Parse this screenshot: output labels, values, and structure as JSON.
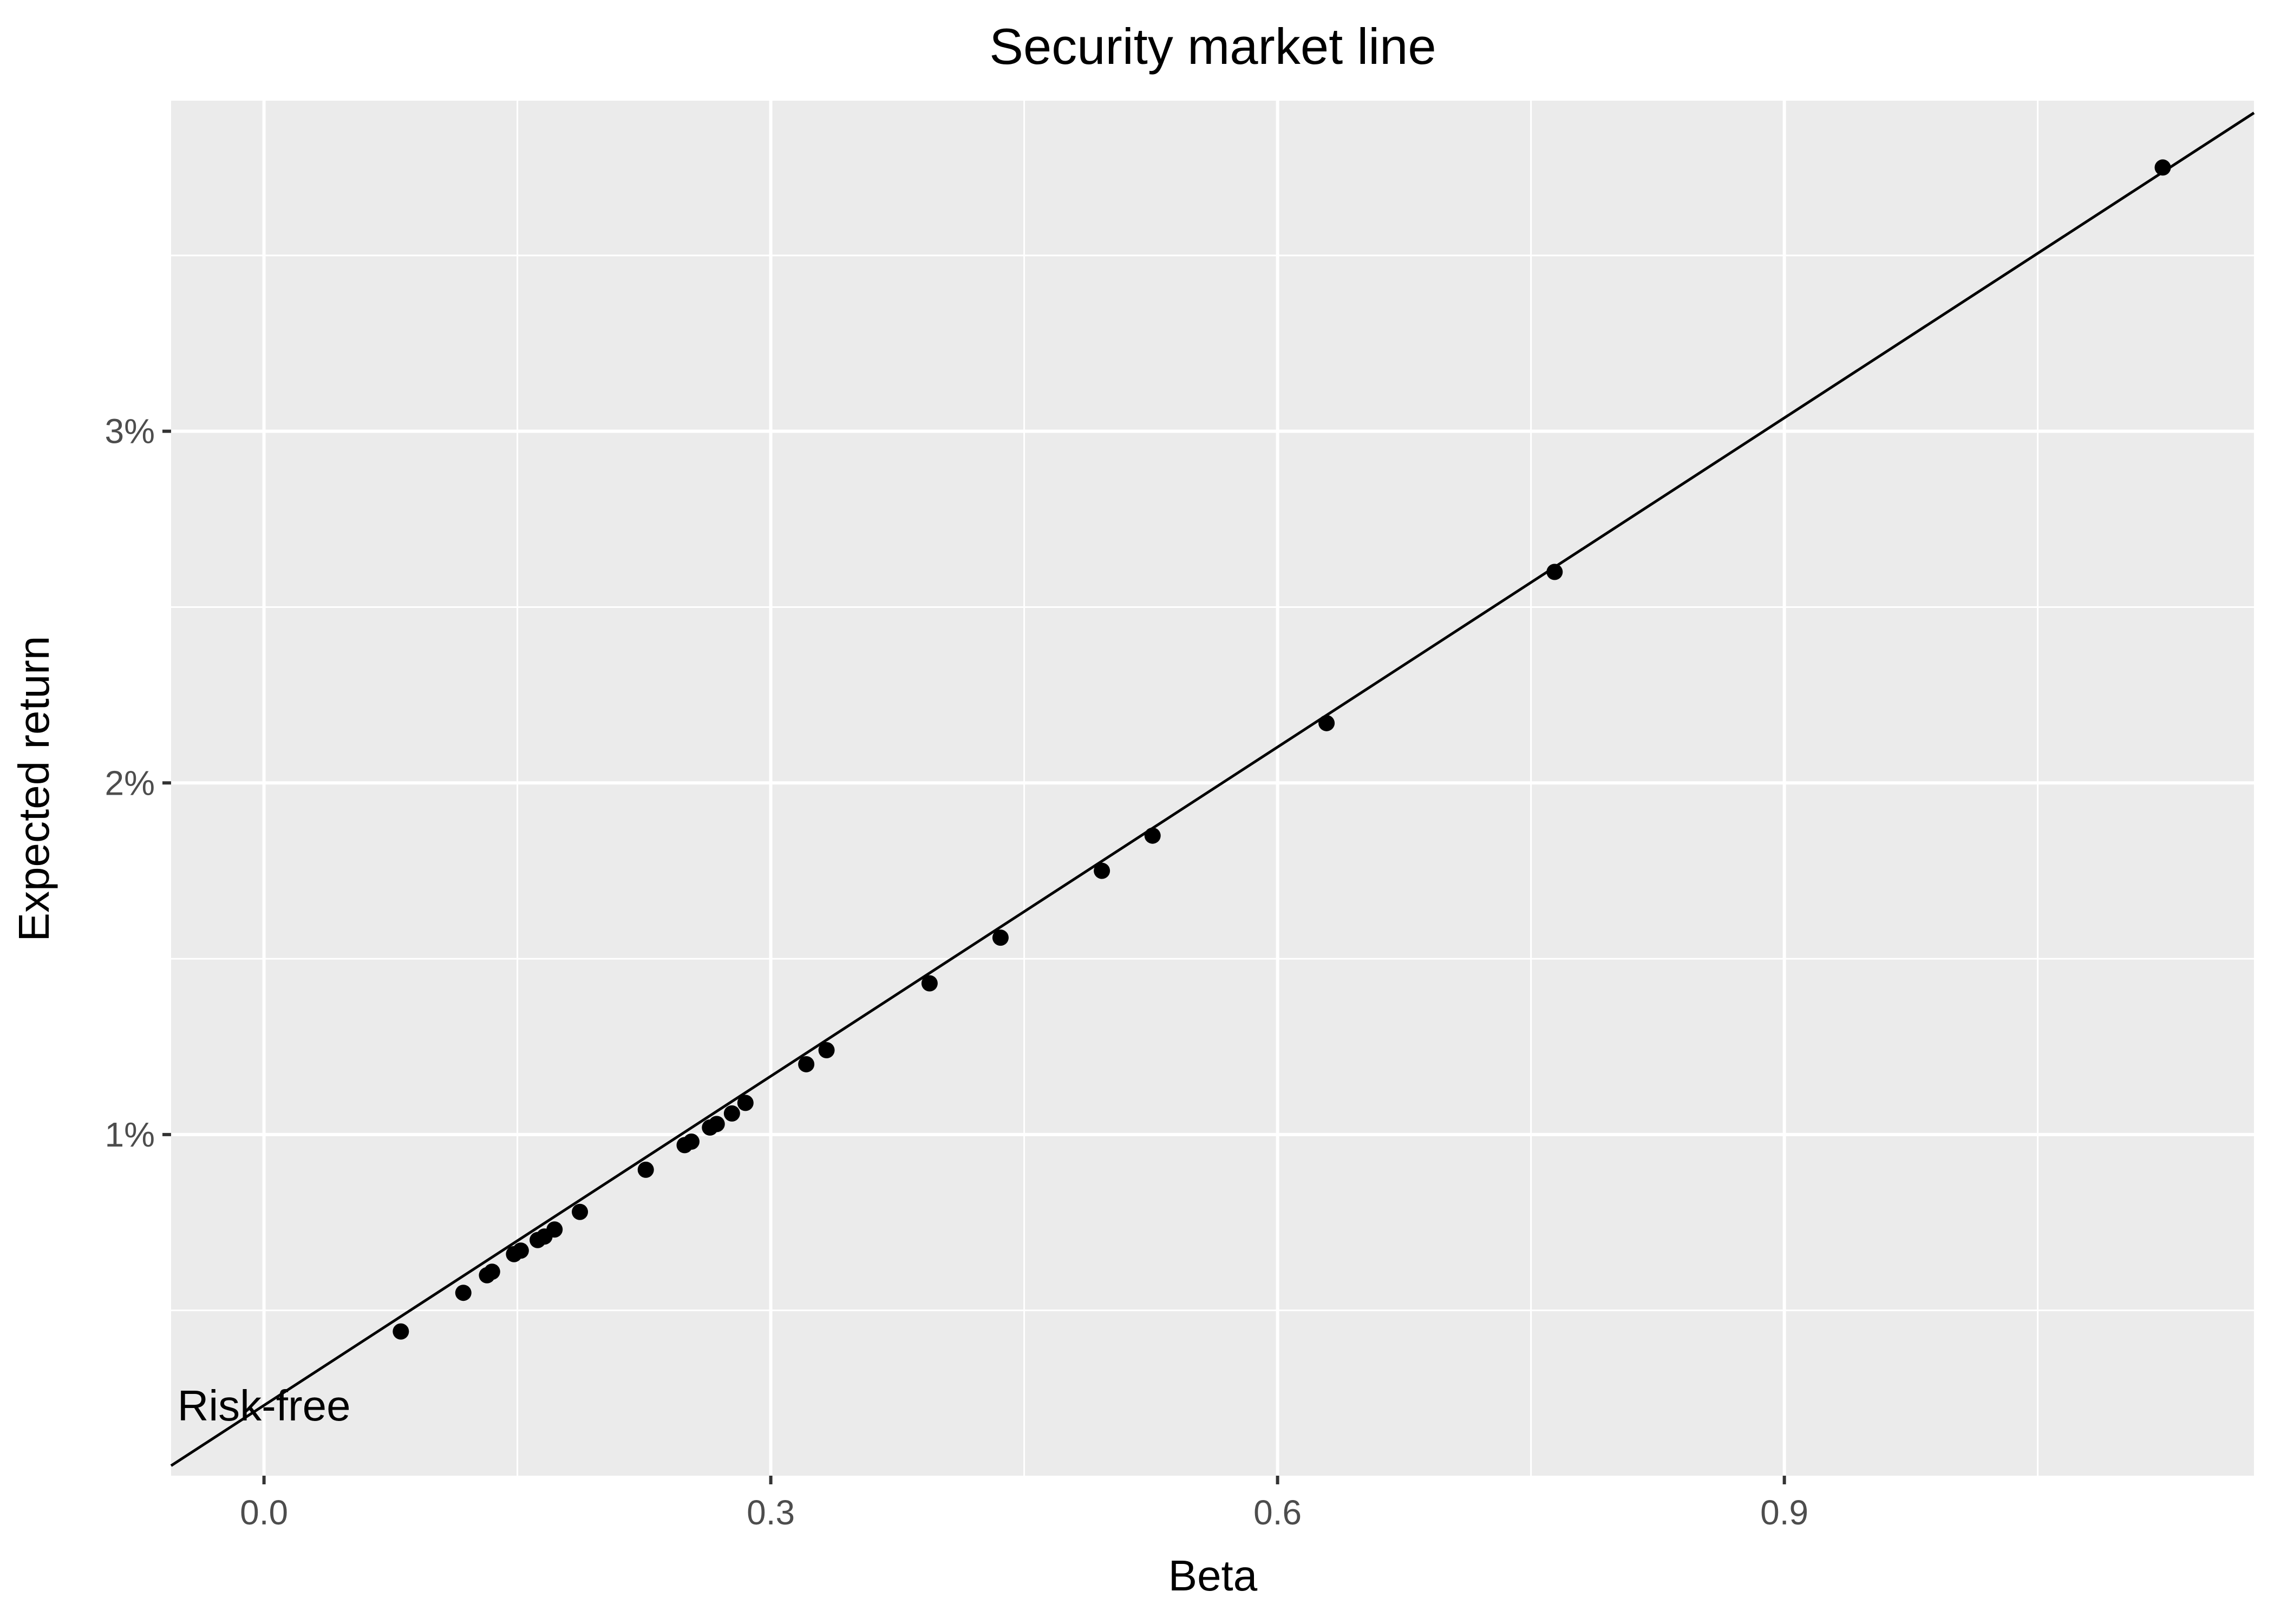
{
  "chart_data": {
    "type": "scatter",
    "title": "Security market line",
    "xlabel": "Beta",
    "ylabel": "Expected return",
    "x_ticks": [
      {
        "value": 0.0,
        "label": "0.0"
      },
      {
        "value": 0.3,
        "label": "0.3"
      },
      {
        "value": 0.6,
        "label": "0.6"
      },
      {
        "value": 0.9,
        "label": "0.9"
      }
    ],
    "y_ticks": [
      {
        "value": 1,
        "label": "1%"
      },
      {
        "value": 2,
        "label": "2%"
      },
      {
        "value": 3,
        "label": "3%"
      }
    ],
    "xlim": [
      -0.055,
      1.178
    ],
    "ylim": [
      0.03,
      3.94
    ],
    "grid": true,
    "legend": "none",
    "colors": {
      "panel_background": "#ebebeb",
      "grid": "#ffffff",
      "points": "#000000",
      "line": "#000000",
      "text": "#000000",
      "tick_text": "#4d4d4d"
    },
    "line": {
      "intercept": 0.23,
      "slope": 3.12
    },
    "annotation": {
      "label": "Risk-free",
      "x": 0.0,
      "y": 0.23
    },
    "points": [
      {
        "x": 0.081,
        "y": 0.44
      },
      {
        "x": 0.118,
        "y": 0.55
      },
      {
        "x": 0.132,
        "y": 0.6
      },
      {
        "x": 0.135,
        "y": 0.61
      },
      {
        "x": 0.148,
        "y": 0.66
      },
      {
        "x": 0.152,
        "y": 0.67
      },
      {
        "x": 0.162,
        "y": 0.7
      },
      {
        "x": 0.166,
        "y": 0.71
      },
      {
        "x": 0.172,
        "y": 0.73
      },
      {
        "x": 0.187,
        "y": 0.78
      },
      {
        "x": 0.226,
        "y": 0.9
      },
      {
        "x": 0.249,
        "y": 0.97
      },
      {
        "x": 0.253,
        "y": 0.98
      },
      {
        "x": 0.264,
        "y": 1.02
      },
      {
        "x": 0.268,
        "y": 1.03
      },
      {
        "x": 0.277,
        "y": 1.06
      },
      {
        "x": 0.285,
        "y": 1.09
      },
      {
        "x": 0.321,
        "y": 1.2
      },
      {
        "x": 0.333,
        "y": 1.24
      },
      {
        "x": 0.394,
        "y": 1.43
      },
      {
        "x": 0.436,
        "y": 1.56
      },
      {
        "x": 0.496,
        "y": 1.75
      },
      {
        "x": 0.526,
        "y": 1.85
      },
      {
        "x": 0.629,
        "y": 2.17
      },
      {
        "x": 0.764,
        "y": 2.6
      },
      {
        "x": 1.124,
        "y": 3.75
      }
    ]
  }
}
